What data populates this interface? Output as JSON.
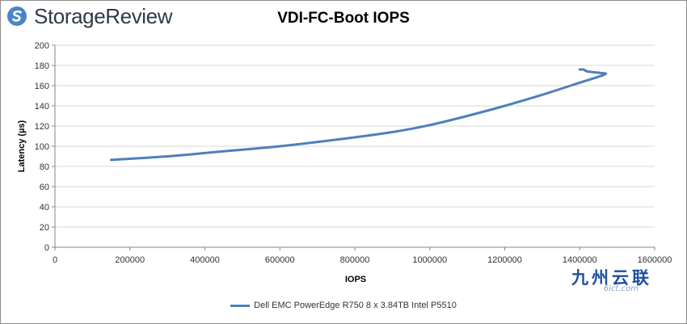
{
  "brand": {
    "name": "StorageReview",
    "logo_icon": "storagereview-logo-icon",
    "color": "#2f3a48",
    "mark_color": "#4a86c5"
  },
  "watermark": {
    "main": "九州云联",
    "sub": "6ict.com"
  },
  "colors": {
    "series": "#4f7fbd",
    "grid": "#d9d9d9",
    "axis": "#868686"
  },
  "chart_data": {
    "type": "line",
    "title": "VDI-FC-Boot IOPS",
    "xlabel": "IOPS",
    "ylabel": "Latency (µs)",
    "xlim": [
      0,
      1600000
    ],
    "ylim": [
      0,
      200
    ],
    "xticks": [
      0,
      200000,
      400000,
      600000,
      800000,
      1000000,
      1200000,
      1400000,
      1600000
    ],
    "yticks": [
      0,
      20,
      40,
      60,
      80,
      100,
      120,
      140,
      160,
      180,
      200
    ],
    "grid": true,
    "legend_position": "bottom",
    "series": [
      {
        "name": "Dell EMC PowerEdge R750 8 x 3.84TB Intel P5510",
        "color": "#4f7fbd",
        "points": [
          [
            150000,
            86.5
          ],
          [
            300000,
            90
          ],
          [
            450000,
            95
          ],
          [
            600000,
            100
          ],
          [
            750000,
            106.5
          ],
          [
            900000,
            114
          ],
          [
            1000000,
            121
          ],
          [
            1100000,
            130
          ],
          [
            1200000,
            140
          ],
          [
            1300000,
            151
          ],
          [
            1400000,
            163
          ],
          [
            1470000,
            172
          ],
          [
            1420000,
            174
          ],
          [
            1410000,
            176
          ],
          [
            1400000,
            176
          ]
        ]
      }
    ]
  }
}
